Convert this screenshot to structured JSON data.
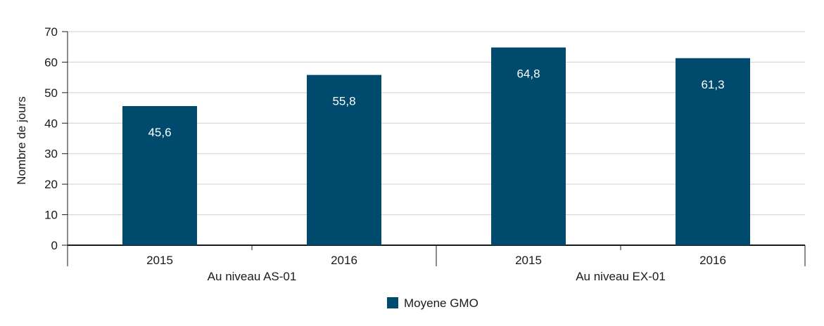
{
  "chart_data": {
    "type": "bar",
    "ylabel": "Nombre de jours",
    "ylim": [
      0,
      70
    ],
    "yticks": [
      0,
      10,
      20,
      30,
      40,
      50,
      60,
      70
    ],
    "grid": true,
    "groups": [
      {
        "label": "Au niveau AS-01",
        "categories": [
          "2015",
          "2016"
        ]
      },
      {
        "label": "Au niveau EX-01",
        "categories": [
          "2015",
          "2016"
        ]
      }
    ],
    "series": [
      {
        "name": "Moyene GMO",
        "color": "#004a6e",
        "values": [
          45.6,
          55.8,
          64.8,
          61.3
        ],
        "labels": [
          "45,6",
          "55,8",
          "64,8",
          "61,3"
        ]
      }
    ],
    "legend_position": "bottom-center"
  }
}
